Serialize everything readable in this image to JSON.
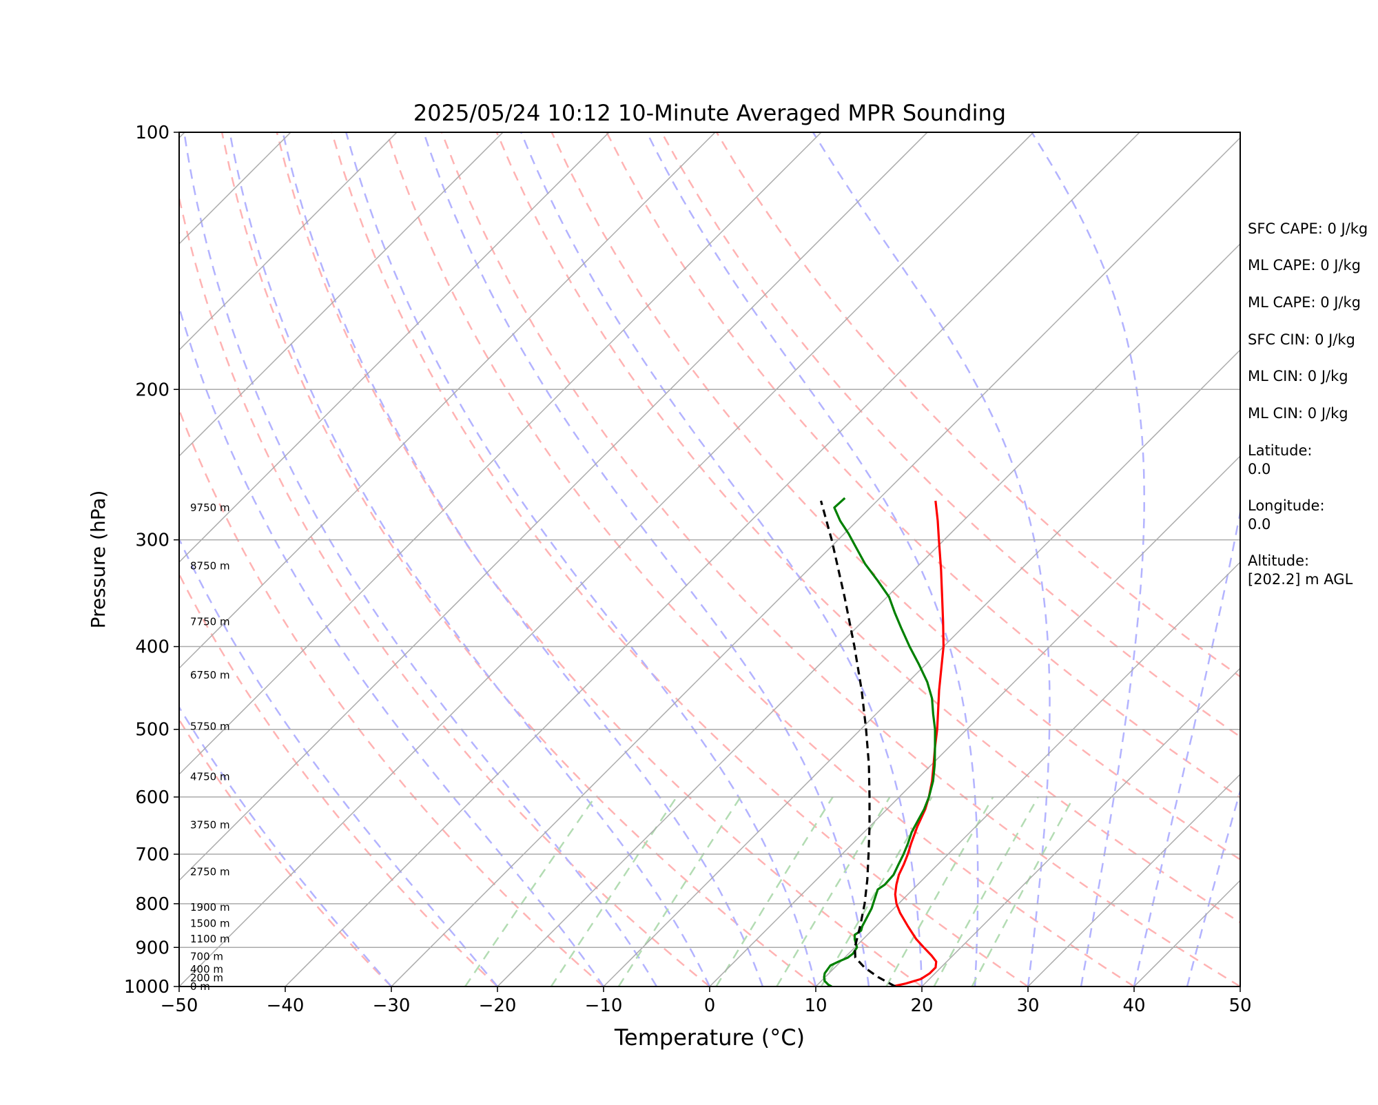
{
  "chart_data": {
    "type": "line",
    "title": "2025/05/24 10:12 10-Minute Averaged MPR Sounding",
    "xlabel": "Temperature (°C)",
    "ylabel": "Pressure (hPa)",
    "xlim": [
      -50,
      50
    ],
    "ylim": [
      1000,
      100
    ],
    "y_scale": "log",
    "grid": true,
    "x_ticks": [
      -50,
      -40,
      -30,
      -20,
      -10,
      0,
      10,
      20,
      30,
      40,
      50
    ],
    "y_ticks": [
      100,
      200,
      300,
      400,
      500,
      600,
      700,
      800,
      900,
      1000
    ],
    "height_labels": [
      {
        "p": 1000,
        "label": "0 m"
      },
      {
        "p": 977,
        "label": "200 m"
      },
      {
        "p": 955,
        "label": "400 m"
      },
      {
        "p": 922,
        "label": "700 m"
      },
      {
        "p": 880,
        "label": "1100 m"
      },
      {
        "p": 844,
        "label": "1500 m"
      },
      {
        "p": 808,
        "label": "1900 m"
      },
      {
        "p": 734,
        "label": "2750 m"
      },
      {
        "p": 647,
        "label": "3750 m"
      },
      {
        "p": 568,
        "label": "4750 m"
      },
      {
        "p": 496,
        "label": "5750 m"
      },
      {
        "p": 432,
        "label": "6750 m"
      },
      {
        "p": 374,
        "label": "7750 m"
      },
      {
        "p": 322,
        "label": "8750 m"
      },
      {
        "p": 275,
        "label": "9750 m"
      }
    ],
    "series": [
      {
        "color": "#ff0000",
        "points": [
          [
            1000,
            17.2
          ],
          [
            992,
            18.2
          ],
          [
            980,
            19.2
          ],
          [
            965,
            19.5
          ],
          [
            950,
            19.5
          ],
          [
            935,
            19.0
          ],
          [
            920,
            18.0
          ],
          [
            900,
            16.5
          ],
          [
            880,
            15.0
          ],
          [
            850,
            13.0
          ],
          [
            820,
            11.0
          ],
          [
            800,
            9.8
          ],
          [
            780,
            8.8
          ],
          [
            760,
            8.0
          ],
          [
            740,
            7.3
          ],
          [
            720,
            6.8
          ],
          [
            700,
            6.2
          ],
          [
            680,
            5.5
          ],
          [
            650,
            4.5
          ],
          [
            620,
            3.6
          ],
          [
            600,
            2.8
          ],
          [
            575,
            1.6
          ],
          [
            550,
            0.2
          ],
          [
            525,
            -1.3
          ],
          [
            500,
            -2.8
          ],
          [
            475,
            -4.5
          ],
          [
            450,
            -6.3
          ],
          [
            425,
            -8.1
          ],
          [
            400,
            -10.0
          ],
          [
            375,
            -12.3
          ],
          [
            350,
            -14.8
          ],
          [
            325,
            -17.5
          ],
          [
            300,
            -20.5
          ],
          [
            285,
            -22.4
          ],
          [
            270,
            -24.5
          ]
        ]
      },
      {
        "color": "#008000",
        "points": [
          [
            1000,
            11.5
          ],
          [
            995,
            11.0
          ],
          [
            985,
            10.3
          ],
          [
            975,
            9.9
          ],
          [
            965,
            9.6
          ],
          [
            955,
            9.5
          ],
          [
            945,
            9.4
          ],
          [
            935,
            9.8
          ],
          [
            925,
            10.3
          ],
          [
            915,
            10.4
          ],
          [
            900,
            10.2
          ],
          [
            890,
            9.7
          ],
          [
            880,
            9.2
          ],
          [
            870,
            8.8
          ],
          [
            860,
            9.0
          ],
          [
            850,
            8.7
          ],
          [
            830,
            8.3
          ],
          [
            810,
            7.9
          ],
          [
            790,
            7.3
          ],
          [
            770,
            6.7
          ],
          [
            760,
            6.9
          ],
          [
            740,
            6.8
          ],
          [
            720,
            6.3
          ],
          [
            700,
            5.8
          ],
          [
            680,
            5.2
          ],
          [
            660,
            4.5
          ],
          [
            640,
            4.0
          ],
          [
            620,
            3.5
          ],
          [
            600,
            2.8
          ],
          [
            575,
            1.7
          ],
          [
            550,
            0.3
          ],
          [
            525,
            -1.3
          ],
          [
            500,
            -3.0
          ],
          [
            480,
            -4.6
          ],
          [
            460,
            -6.2
          ],
          [
            440,
            -8.2
          ],
          [
            420,
            -10.6
          ],
          [
            400,
            -13.2
          ],
          [
            380,
            -15.8
          ],
          [
            365,
            -17.8
          ],
          [
            350,
            -19.8
          ],
          [
            335,
            -22.4
          ],
          [
            320,
            -25.2
          ],
          [
            305,
            -27.8
          ],
          [
            295,
            -29.6
          ],
          [
            285,
            -31.6
          ],
          [
            275,
            -33.4
          ],
          [
            268,
            -33.3
          ]
        ]
      },
      {
        "color": "#000000",
        "dashed": true,
        "points": [
          [
            1000,
            17.5
          ],
          [
            975,
            15.0
          ],
          [
            950,
            12.8
          ],
          [
            925,
            11.0
          ],
          [
            900,
            10.0
          ],
          [
            850,
            8.5
          ],
          [
            800,
            6.8
          ],
          [
            750,
            4.8
          ],
          [
            700,
            2.5
          ],
          [
            650,
            0.0
          ],
          [
            600,
            -2.8
          ],
          [
            550,
            -5.9
          ],
          [
            500,
            -9.5
          ],
          [
            450,
            -13.6
          ],
          [
            400,
            -18.4
          ],
          [
            350,
            -24.0
          ],
          [
            300,
            -30.6
          ],
          [
            270,
            -35.3
          ]
        ]
      }
    ],
    "annotations": [
      {
        "text": "SFC CAPE: 0 J/kg"
      },
      {
        "text": "ML CAPE: 0 J/kg"
      },
      {
        "text": "ML CAPE: 0 J/kg"
      },
      {
        "text": "SFC CIN: 0 J/kg"
      },
      {
        "text": "ML CIN: 0 J/kg"
      },
      {
        "text": "ML CIN: 0 J/kg"
      },
      {
        "text": "Latitude:\n0.0"
      },
      {
        "text": "Longitude:\n0.0"
      },
      {
        "text": "Altitude:\n[202.2] m AGL"
      }
    ],
    "background_lines": {
      "isotherm_color": "#aaaaaa",
      "dry_adiabat_color": "#ffb3b3",
      "moist_adiabat_color": "#b3b3ff",
      "mixing_ratio_color": "#b3dcb3",
      "dry_adiabats_theta_C": [
        -30,
        -20,
        -10,
        0,
        10,
        20,
        30,
        40,
        50,
        60,
        70,
        80,
        90,
        100
      ],
      "moist_adiabats_start_C": [
        -30,
        -20,
        -10,
        -5,
        0,
        5,
        10,
        15,
        20,
        25,
        30,
        35,
        40,
        45
      ],
      "mixing_ratios_gkg": [
        0.6,
        1.2,
        2,
        4,
        6,
        8,
        12,
        16,
        20
      ]
    }
  }
}
